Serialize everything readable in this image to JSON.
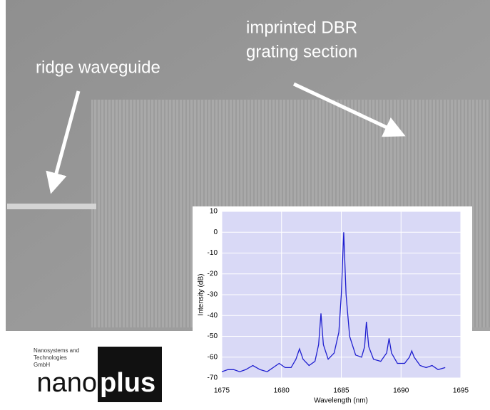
{
  "photo_labels": {
    "waveguide": "ridge waveguide",
    "grating": [
      "imprinted DBR",
      "grating section"
    ]
  },
  "logo": {
    "lines": [
      "Nanosystems and",
      "Technologies",
      "GmbH"
    ],
    "brand_a": "nano",
    "brand_b": "plus"
  },
  "chart_data": {
    "type": "line",
    "xlabel": "Wavelength (nm)",
    "ylabel": "Intensity (dB)",
    "x": [
      1675.0,
      1675.5,
      1676.0,
      1676.5,
      1677.0,
      1677.6,
      1678.2,
      1678.8,
      1679.3,
      1679.8,
      1680.3,
      1680.8,
      1681.2,
      1681.5,
      1681.8,
      1682.3,
      1682.8,
      1683.1,
      1683.3,
      1683.5,
      1683.9,
      1684.4,
      1684.8,
      1685.0,
      1685.2,
      1685.4,
      1685.7,
      1686.2,
      1686.7,
      1686.95,
      1687.1,
      1687.3,
      1687.7,
      1688.3,
      1688.8,
      1689.0,
      1689.2,
      1689.7,
      1690.3,
      1690.7,
      1690.9,
      1691.1,
      1691.6,
      1692.1,
      1692.6,
      1693.1,
      1693.7
    ],
    "values": [
      -67,
      -66,
      -66,
      -67,
      -66,
      -64,
      -66,
      -67,
      -65,
      -63,
      -65,
      -65,
      -61,
      -56,
      -61,
      -64,
      -62,
      -54,
      -39,
      -54,
      -61,
      -58,
      -48,
      -30,
      0,
      -30,
      -50,
      -59,
      -60,
      -55,
      -43,
      -55,
      -61,
      -62,
      -58,
      -51,
      -58,
      -63,
      -63,
      -60,
      -57,
      -60,
      -64,
      -65,
      -64,
      -66,
      -65
    ],
    "color": "#1f1fd0",
    "xlim": [
      1675,
      1695
    ],
    "ylim": [
      -70,
      10
    ],
    "xticks": [
      1675,
      1680,
      1685,
      1690,
      1695
    ],
    "yticks": [
      -70,
      -60,
      -50,
      -40,
      -30,
      -20,
      -10,
      0,
      10
    ],
    "grid": true
  }
}
